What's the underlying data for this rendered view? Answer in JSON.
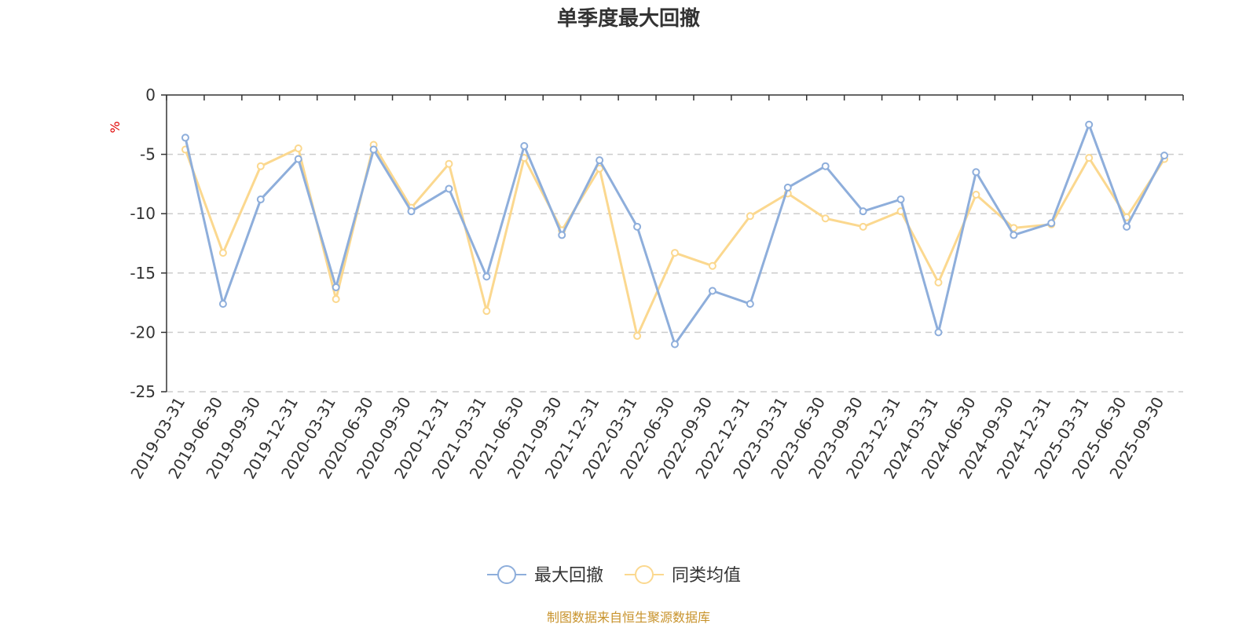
{
  "chart_data": {
    "type": "line",
    "title": "单季度最大回撤",
    "ylabel": "%",
    "ylim": [
      -25,
      0
    ],
    "yticks": [
      0,
      -5,
      -10,
      -15,
      -20,
      -25
    ],
    "grid": true,
    "legend_position": "bottom",
    "categories": [
      "2019-03-31",
      "2019-06-30",
      "2019-09-30",
      "2019-12-31",
      "2020-03-31",
      "2020-06-30",
      "2020-09-30",
      "2020-12-31",
      "2021-03-31",
      "2021-06-30",
      "2021-09-30",
      "2021-12-31",
      "2022-03-31",
      "2022-06-30",
      "2022-09-30",
      "2022-12-31",
      "2023-03-31",
      "2023-06-30",
      "2023-09-30",
      "2023-12-31",
      "2024-03-31",
      "2024-06-30",
      "2024-09-30",
      "2024-12-31",
      "2025-03-31",
      "2025-06-30",
      "2025-09-30"
    ],
    "series": [
      {
        "name": "最大回撤",
        "color": "#8eaedb",
        "values": [
          -3.6,
          -17.6,
          -8.8,
          -5.4,
          -16.2,
          -4.6,
          -9.8,
          -7.9,
          -15.3,
          -4.3,
          -11.8,
          -5.5,
          -11.1,
          -21.0,
          -16.5,
          -17.6,
          -7.8,
          -6.0,
          -9.8,
          -8.8,
          -20.0,
          -6.5,
          -11.8,
          -10.8,
          -2.5,
          -11.1,
          -5.1
        ]
      },
      {
        "name": "同类均值",
        "color": "#fbd88f",
        "values": [
          -4.6,
          -13.3,
          -6.0,
          -4.5,
          -17.2,
          -4.2,
          -9.5,
          -5.8,
          -18.2,
          -5.3,
          -11.4,
          -6.2,
          -20.3,
          -13.3,
          -14.4,
          -10.2,
          -8.3,
          -10.4,
          -11.1,
          -9.8,
          -15.8,
          -8.4,
          -11.2,
          -10.9,
          -5.3,
          -10.3,
          -5.4
        ]
      }
    ]
  },
  "footer": {
    "source": "制图数据来自恒生聚源数据库"
  }
}
